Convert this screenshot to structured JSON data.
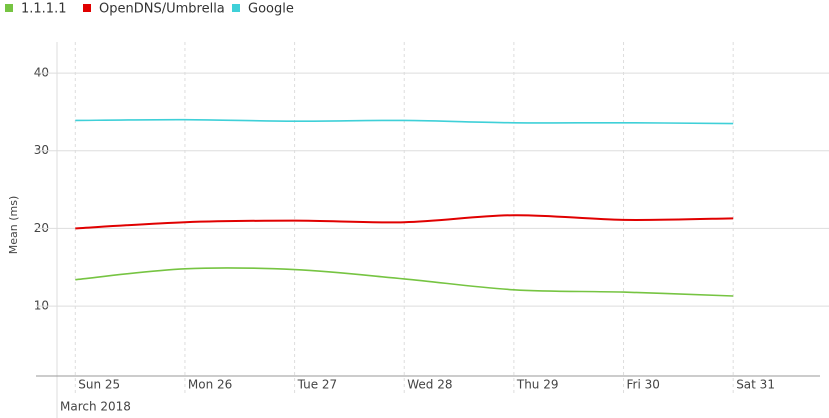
{
  "chart_data": {
    "type": "line",
    "y_label": "Mean (ms)",
    "x_annotation": "March 2018",
    "x": [
      "2018-03-25",
      "2018-03-26",
      "2018-03-27",
      "2018-03-28",
      "2018-03-29",
      "2018-03-30",
      "2018-03-31"
    ],
    "series": [
      {
        "name": "1.1.1.1",
        "color": "#76c442",
        "values": [
          13.4,
          14.8,
          14.7,
          13.5,
          12.1,
          11.8,
          11.3
        ]
      },
      {
        "name": "OpenDNS/Umbrella",
        "color": "#e00000",
        "values": [
          20.0,
          20.8,
          21.0,
          20.8,
          21.7,
          21.1,
          21.3
        ]
      },
      {
        "name": "Google",
        "color": "#3fd0d8",
        "values": [
          33.9,
          34.0,
          33.8,
          33.9,
          33.6,
          33.6,
          33.5
        ]
      }
    ],
    "xlim": [
      "2018-03-24T20:00",
      "2018-03-31T19:00"
    ],
    "xticks": [
      {
        "value": "2018-03-25",
        "label": "Sun 25"
      },
      {
        "value": "2018-03-26",
        "label": "Mon 26"
      },
      {
        "value": "2018-03-27",
        "label": "Tue 27"
      },
      {
        "value": "2018-03-28",
        "label": "Wed 28"
      },
      {
        "value": "2018-03-29",
        "label": "Thu 29"
      },
      {
        "value": "2018-03-30",
        "label": "Fri 30"
      },
      {
        "value": "2018-03-31",
        "label": "Sat 31"
      }
    ],
    "ylim": [
      1,
      44
    ],
    "yticks": [
      10,
      20,
      30,
      40
    ],
    "grid": true,
    "legend": "top-left"
  }
}
